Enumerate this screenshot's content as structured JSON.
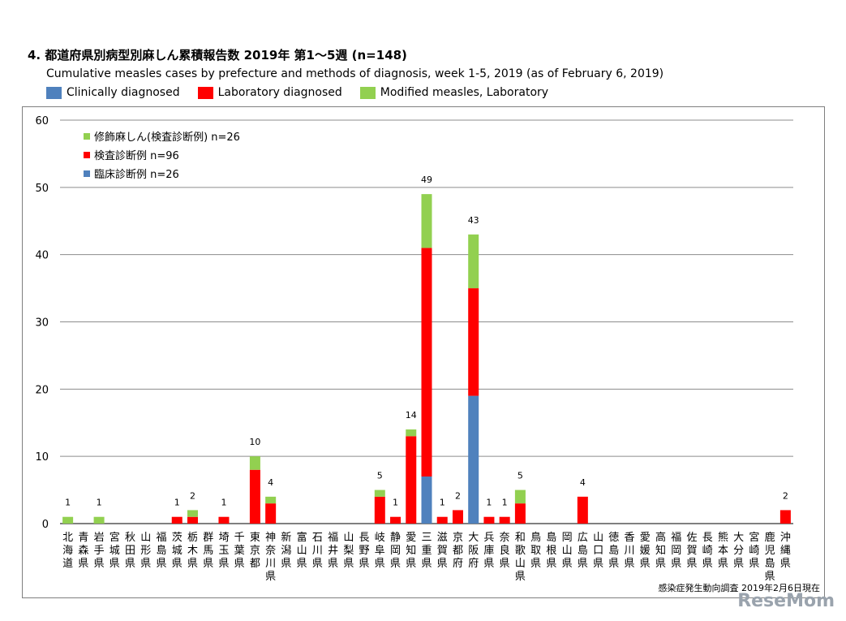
{
  "header": {
    "title": "4. 都道府県別病型別麻しん累積報告数 2019年 第1～5週 (n=148)",
    "subtitle": "Cumulative measles cases by prefecture and methods of diagnosis, week 1-5, 2019 (as of February 6, 2019)",
    "legend": [
      {
        "label": "Clinically diagnosed",
        "color": "#4f81bd"
      },
      {
        "label": "Laboratory diagnosed",
        "color": "#ff0000"
      },
      {
        "label": "Modified measles, Laboratory",
        "color": "#92d050"
      }
    ]
  },
  "source": "感染症発生動向調査 2019年2月6日現在",
  "watermark": "ReseMom",
  "chart_data": {
    "type": "bar",
    "stacked": true,
    "ylim": [
      0,
      60
    ],
    "yticks": [
      0,
      10,
      20,
      30,
      40,
      50,
      60
    ],
    "grid": true,
    "inner_legend": [
      {
        "label": "修飾麻しん(検査診断例) n=26",
        "color": "#92d050"
      },
      {
        "label": "検査診断例 n=96",
        "color": "#ff0000"
      },
      {
        "label": "臨床診断例 n=26",
        "color": "#4f81bd"
      }
    ],
    "categories": [
      "北海道",
      "青森県",
      "岩手県",
      "宮城県",
      "秋田県",
      "山形県",
      "福島県",
      "茨城県",
      "栃木県",
      "群馬県",
      "埼玉県",
      "千葉県",
      "東京都",
      "神奈川県",
      "新潟県",
      "富山県",
      "石川県",
      "福井県",
      "山梨県",
      "長野県",
      "岐阜県",
      "静岡県",
      "愛知県",
      "三重県",
      "滋賀県",
      "京都府",
      "大阪府",
      "兵庫県",
      "奈良県",
      "和歌山県",
      "鳥取県",
      "島根県",
      "岡山県",
      "広島県",
      "山口県",
      "徳島県",
      "香川県",
      "愛媛県",
      "高知県",
      "福岡県",
      "佐賀県",
      "長崎県",
      "熊本県",
      "大分県",
      "宮崎県",
      "鹿児島県",
      "沖縄県"
    ],
    "series": [
      {
        "name": "臨床診断例",
        "color": "#4f81bd",
        "values": [
          0,
          0,
          0,
          0,
          0,
          0,
          0,
          0,
          0,
          0,
          0,
          0,
          0,
          0,
          0,
          0,
          0,
          0,
          0,
          0,
          0,
          0,
          0,
          7,
          0,
          0,
          19,
          0,
          0,
          0,
          0,
          0,
          0,
          0,
          0,
          0,
          0,
          0,
          0,
          0,
          0,
          0,
          0,
          0,
          0,
          0,
          0
        ]
      },
      {
        "name": "検査診断例",
        "color": "#ff0000",
        "values": [
          0,
          0,
          0,
          0,
          0,
          0,
          0,
          1,
          1,
          0,
          1,
          0,
          8,
          3,
          0,
          0,
          0,
          0,
          0,
          0,
          4,
          1,
          13,
          34,
          1,
          2,
          16,
          1,
          1,
          3,
          0,
          0,
          0,
          4,
          0,
          0,
          0,
          0,
          0,
          0,
          0,
          0,
          0,
          0,
          0,
          0,
          2
        ]
      },
      {
        "name": "修飾麻しん(検査診断例)",
        "color": "#92d050",
        "values": [
          1,
          0,
          1,
          0,
          0,
          0,
          0,
          0,
          1,
          0,
          0,
          0,
          2,
          1,
          0,
          0,
          0,
          0,
          0,
          0,
          1,
          0,
          1,
          8,
          0,
          0,
          8,
          0,
          0,
          2,
          0,
          0,
          0,
          0,
          0,
          0,
          0,
          0,
          0,
          0,
          0,
          0,
          0,
          0,
          0,
          0,
          0
        ]
      }
    ],
    "totals": [
      1,
      0,
      1,
      0,
      0,
      0,
      0,
      1,
      2,
      0,
      1,
      0,
      10,
      4,
      0,
      0,
      0,
      0,
      0,
      0,
      5,
      1,
      14,
      49,
      1,
      2,
      43,
      1,
      1,
      5,
      0,
      0,
      0,
      4,
      0,
      0,
      0,
      0,
      0,
      0,
      0,
      0,
      0,
      0,
      0,
      0,
      2
    ]
  }
}
